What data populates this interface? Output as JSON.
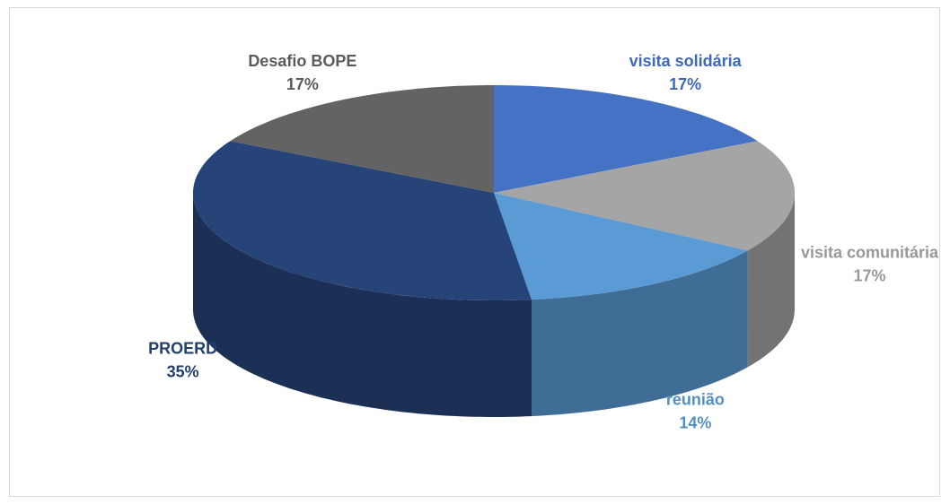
{
  "chart_data": {
    "type": "pie",
    "categories": [
      "visita solidária",
      "visita comunitária",
      "reunião",
      "PROERD",
      "Desafio BOPE"
    ],
    "values": [
      17,
      17,
      14,
      35,
      17
    ],
    "value_labels": [
      "17%",
      "17%",
      "14%",
      "35%",
      "17%"
    ],
    "colors": [
      "#4472c4",
      "#a5a5a5",
      "#5b9bd5",
      "#264478",
      "#636363"
    ]
  }
}
